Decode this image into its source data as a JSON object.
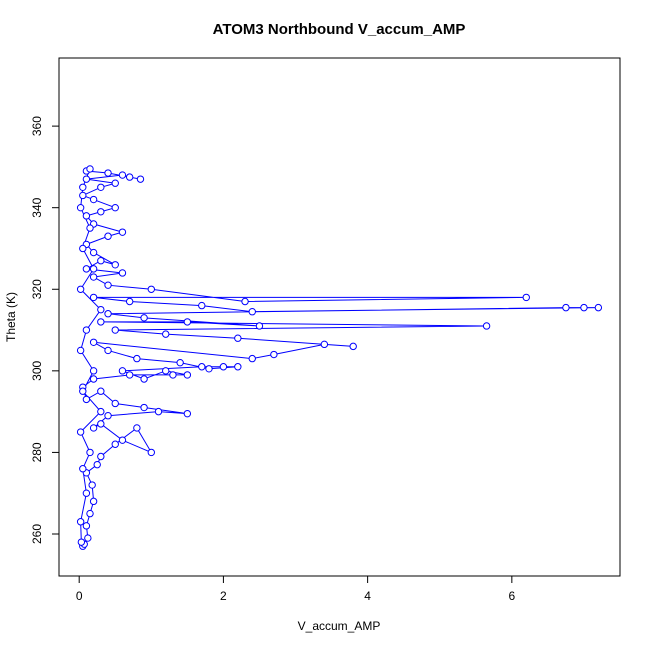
{
  "chart_data": {
    "type": "line",
    "markers": true,
    "title": "ATOM3 Northbound V_accum_AMP",
    "x_label": "V_accum_AMP",
    "y_label": "Theta (K)",
    "xlim": [
      -0.28,
      7.5
    ],
    "ylim": [
      249.7,
      376.7
    ],
    "xticks": [
      0,
      2,
      4,
      6
    ],
    "yticks": [
      260,
      280,
      300,
      320,
      340,
      360
    ],
    "grid": false,
    "x": [
      0.05,
      0.07,
      0.12,
      0.1,
      0.15,
      0.2,
      0.18,
      0.1,
      0.25,
      0.3,
      0.5,
      0.8,
      1.0,
      0.6,
      0.3,
      0.2,
      0.4,
      1.1,
      1.5,
      0.9,
      0.5,
      0.3,
      0.1,
      0.05,
      0.2,
      0.7,
      1.3,
      1.5,
      1.2,
      0.9,
      0.6,
      1.7,
      2.0,
      2.2,
      1.8,
      1.4,
      0.8,
      0.4,
      0.2,
      2.4,
      2.7,
      3.4,
      3.8,
      2.2,
      1.2,
      0.5,
      5.65,
      0.3,
      1.5,
      2.5,
      0.9,
      0.4,
      6.75,
      7.0,
      7.2,
      2.4,
      1.7,
      0.7,
      0.2,
      6.2,
      2.3,
      1.0,
      0.4,
      0.2,
      0.6,
      0.1,
      0.3,
      0.5,
      0.2,
      0.1,
      0.4,
      0.6,
      0.2,
      0.1,
      0.3,
      0.5,
      0.2,
      0.05,
      0.3,
      0.5,
      0.1,
      0.6,
      0.7,
      0.85,
      0.4,
      0.1,
      0.15,
      0.05,
      0.02,
      0.15,
      0.05,
      0.2,
      0.02,
      0.3,
      0.1,
      0.02,
      0.2,
      0.05,
      0.3,
      0.02,
      0.15,
      0.05,
      0.1,
      0.02,
      0.03
    ],
    "series": [
      {
        "name": "V_accum_AMP",
        "color": "#0000ff",
        "values": [
          257,
          257.5,
          259,
          262,
          265,
          268,
          272,
          275,
          277,
          279,
          282,
          286,
          280,
          283,
          287,
          286,
          289,
          290,
          289.5,
          291,
          292,
          295,
          293,
          296,
          298,
          299,
          299,
          299,
          300,
          298,
          300,
          301,
          301,
          301,
          300.5,
          302,
          303,
          305,
          307,
          303,
          304,
          306.5,
          306,
          308,
          309,
          310,
          311,
          312,
          312,
          311,
          313,
          314,
          315.5,
          315.5,
          315.5,
          314.5,
          316,
          317,
          318,
          318,
          317,
          320,
          321,
          323,
          324,
          325,
          327,
          326,
          329,
          331,
          333,
          334,
          336,
          338,
          339,
          340,
          342,
          343,
          345,
          346,
          347,
          348,
          347.5,
          347,
          348.5,
          349,
          349.5,
          345,
          340,
          335,
          330,
          325,
          320,
          315,
          310,
          305,
          300,
          295,
          290,
          285,
          280,
          276,
          270,
          263,
          258
        ]
      }
    ]
  }
}
